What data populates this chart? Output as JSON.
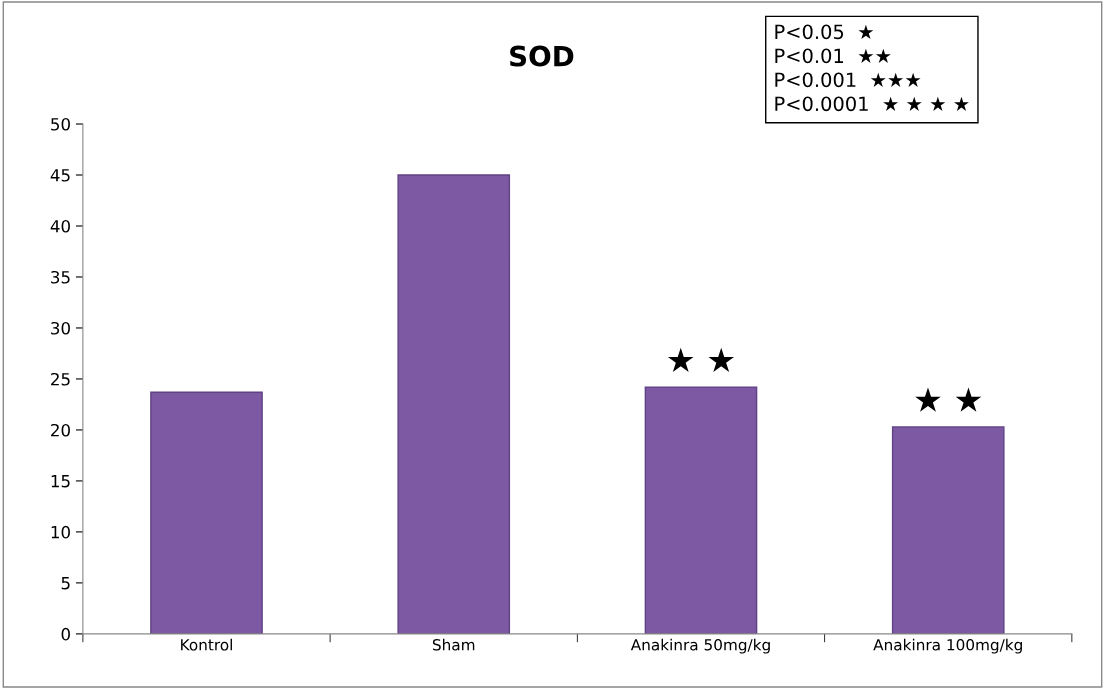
{
  "chart_data": {
    "type": "bar",
    "title": "SOD",
    "categories": [
      "Kontrol",
      "Sham",
      "Anakinra 50mg/kg",
      "Anakinra 100mg/kg"
    ],
    "values": [
      23.7,
      45,
      24.2,
      20.3
    ],
    "color": "#7d59a4",
    "ylim": [
      0,
      50
    ],
    "yticks": [
      0,
      5,
      10,
      15,
      20,
      25,
      30,
      35,
      40,
      45,
      50
    ],
    "grid": false,
    "legend": false,
    "annotations": [
      "P<0.05  ★",
      "P<0.01  ★★",
      "P<0.001  ★★★",
      "P<0.0001  ★ ★ ★ ★",
      {
        "text": "★ ★",
        "x": "Anakinra 50mg/kg",
        "y": 24.2
      },
      {
        "text": "★ ★",
        "x": "Anakinra 100mg/kg",
        "y": 20.3
      }
    ]
  }
}
